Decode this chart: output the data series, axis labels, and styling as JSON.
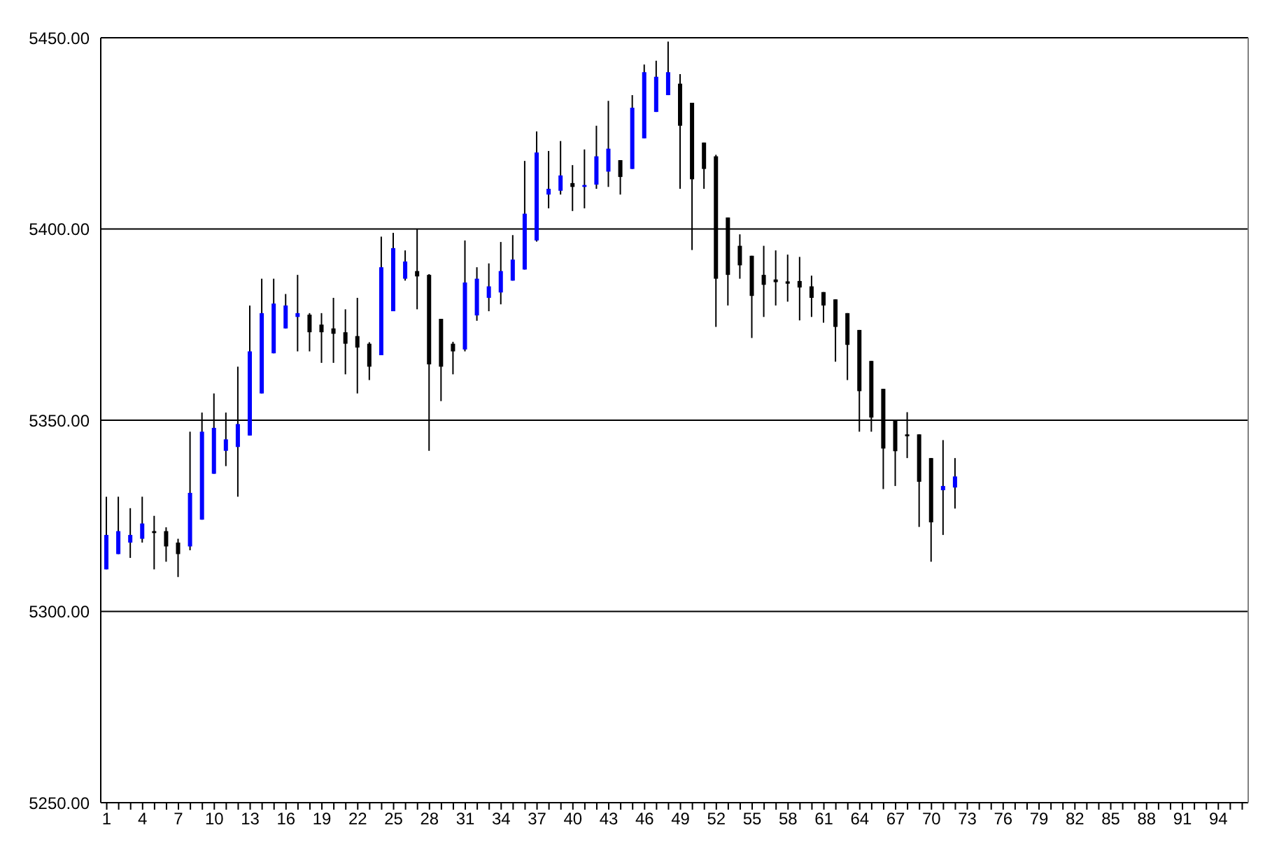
{
  "chart_data": {
    "type": "candlestick",
    "x": [
      1,
      2,
      3,
      4,
      5,
      6,
      7,
      8,
      9,
      10,
      11,
      12,
      13,
      14,
      15,
      16,
      17,
      18,
      19,
      20,
      21,
      22,
      23,
      24,
      25,
      26,
      27,
      28,
      29,
      30,
      31,
      32,
      33,
      34,
      35,
      36,
      37,
      38,
      39,
      40,
      41,
      42,
      43,
      44,
      45,
      46,
      47,
      48,
      49,
      50,
      51,
      52,
      53,
      54,
      55,
      56,
      57,
      58,
      59,
      60,
      61,
      62,
      63,
      64,
      65,
      66,
      67,
      68,
      69,
      70,
      71,
      72
    ],
    "ohlc": [
      [
        5311,
        5330,
        5311,
        5320
      ],
      [
        5315,
        5330,
        5315,
        5321
      ],
      [
        5318,
        5327,
        5314,
        5320
      ],
      [
        5319,
        5330,
        5318,
        5323
      ],
      [
        5321,
        5325,
        5311,
        5320.5
      ],
      [
        5321,
        5322,
        5313,
        5317
      ],
      [
        5318,
        5319,
        5309,
        5315
      ],
      [
        5317,
        5347,
        5316,
        5331
      ],
      [
        5324,
        5352,
        5324,
        5347
      ],
      [
        5336,
        5357,
        5336,
        5348
      ],
      [
        5342,
        5352,
        5338,
        5345
      ],
      [
        5343,
        5364,
        5330,
        5349
      ],
      [
        5346,
        5380,
        5346,
        5368
      ],
      [
        5357,
        5387,
        5357,
        5378
      ],
      [
        5367.5,
        5387,
        5367.5,
        5380.5
      ],
      [
        5374,
        5383,
        5374,
        5380
      ],
      [
        5377,
        5388,
        5368,
        5378
      ],
      [
        5377.6,
        5378,
        5368,
        5373
      ],
      [
        5375,
        5378,
        5365,
        5373
      ],
      [
        5374,
        5382,
        5365,
        5372.6
      ],
      [
        5373,
        5379,
        5362,
        5370
      ],
      [
        5372,
        5382,
        5357,
        5369
      ],
      [
        5370,
        5370.4,
        5360.5,
        5364
      ],
      [
        5367,
        5398,
        5367,
        5390
      ],
      [
        5378.5,
        5399,
        5378.5,
        5395
      ],
      [
        5387,
        5394.4,
        5386.5,
        5391.5
      ],
      [
        5389,
        5400,
        5379,
        5387.6
      ],
      [
        5388,
        5388.2,
        5342,
        5364.6
      ],
      [
        5376.5,
        5376.5,
        5355,
        5364
      ],
      [
        5370,
        5370.5,
        5362,
        5368
      ],
      [
        5368.5,
        5397,
        5368,
        5386
      ],
      [
        5377.4,
        5390,
        5376,
        5387
      ],
      [
        5382,
        5391,
        5378.5,
        5385
      ],
      [
        5383.4,
        5396.6,
        5380.3,
        5389
      ],
      [
        5386.5,
        5398.4,
        5386.5,
        5392
      ],
      [
        5389.4,
        5417.8,
        5389.4,
        5404
      ],
      [
        5397,
        5425.5,
        5396.7,
        5420
      ],
      [
        5409,
        5420.4,
        5405.4,
        5410.5
      ],
      [
        5410,
        5423,
        5409,
        5414
      ],
      [
        5412,
        5416.7,
        5404.7,
        5411
      ],
      [
        5411,
        5420.8,
        5405.4,
        5411.5
      ],
      [
        5411.6,
        5427,
        5410.5,
        5419
      ],
      [
        5415,
        5433.5,
        5411,
        5421
      ],
      [
        5418,
        5418,
        5409,
        5413.6
      ],
      [
        5415.7,
        5435,
        5415.7,
        5431.7
      ],
      [
        5423.7,
        5443,
        5423.7,
        5441
      ],
      [
        5430.6,
        5444,
        5430.6,
        5439.8
      ],
      [
        5435,
        5449,
        5435,
        5441
      ],
      [
        5438,
        5440.5,
        5410.5,
        5427
      ],
      [
        5433,
        5433,
        5394.5,
        5413
      ],
      [
        5422.6,
        5422.6,
        5410.5,
        5415.7
      ],
      [
        5419,
        5419.4,
        5374.4,
        5387
      ],
      [
        5403,
        5403,
        5380,
        5388
      ],
      [
        5395.6,
        5398.6,
        5387,
        5390.5
      ],
      [
        5393,
        5393,
        5371.5,
        5382.5
      ],
      [
        5388,
        5395.6,
        5377,
        5385.4
      ],
      [
        5386.8,
        5394.4,
        5380,
        5386.1
      ],
      [
        5386.3,
        5393.3,
        5381,
        5385.7
      ],
      [
        5386.4,
        5392.7,
        5376.1,
        5384.7
      ],
      [
        5385,
        5387.8,
        5377,
        5382
      ],
      [
        5383.5,
        5383.5,
        5375.5,
        5380
      ],
      [
        5381.6,
        5381.6,
        5365.3,
        5374.4
      ],
      [
        5378,
        5378,
        5360.5,
        5369.7
      ],
      [
        5373.6,
        5373.6,
        5347,
        5357.6
      ],
      [
        5365.5,
        5365.5,
        5347,
        5350.7
      ],
      [
        5358.2,
        5358.2,
        5332,
        5342.6
      ],
      [
        5350,
        5350,
        5332.8,
        5341.9
      ],
      [
        5346.3,
        5352.1,
        5340.1,
        5345.8
      ],
      [
        5346.3,
        5346.3,
        5322.1,
        5333.9
      ],
      [
        5340.1,
        5340.1,
        5313,
        5323.3
      ],
      [
        5331.7,
        5344.8,
        5320,
        5332.8
      ],
      [
        5332.4,
        5340.1,
        5326.9,
        5335.3
      ]
    ],
    "colors": [
      "#0000ff",
      "#0000ff",
      "#0000ff",
      "#0000ff",
      "#000000",
      "#000000",
      "#000000",
      "#0000ff",
      "#0000ff",
      "#0000ff",
      "#0000ff",
      "#0000ff",
      "#0000ff",
      "#0000ff",
      "#0000ff",
      "#0000ff",
      "#0000ff",
      "#000000",
      "#000000",
      "#000000",
      "#000000",
      "#000000",
      "#000000",
      "#0000ff",
      "#0000ff",
      "#0000ff",
      "#000000",
      "#000000",
      "#000000",
      "#000000",
      "#0000ff",
      "#0000ff",
      "#0000ff",
      "#0000ff",
      "#0000ff",
      "#0000ff",
      "#0000ff",
      "#0000ff",
      "#0000ff",
      "#000000",
      "#0000ff",
      "#0000ff",
      "#0000ff",
      "#000000",
      "#0000ff",
      "#0000ff",
      "#0000ff",
      "#0000ff",
      "#000000",
      "#000000",
      "#000000",
      "#000000",
      "#000000",
      "#000000",
      "#000000",
      "#000000",
      "#000000",
      "#000000",
      "#000000",
      "#000000",
      "#000000",
      "#000000",
      "#000000",
      "#000000",
      "#000000",
      "#000000",
      "#000000",
      "#000000",
      "#000000",
      "#000000",
      "#0000ff",
      "#0000ff"
    ],
    "xlim": [
      0.5,
      96.5
    ],
    "xticks": [
      1,
      {
        "value": 2,
        "label": null
      },
      {
        "value": 3,
        "label": null
      },
      4,
      {
        "value": 5,
        "label": null
      },
      {
        "value": 6,
        "label": null
      },
      7,
      {
        "value": 8,
        "label": null
      },
      {
        "value": 9,
        "label": null
      },
      10,
      {
        "value": 11,
        "label": null
      },
      {
        "value": 12,
        "label": null
      },
      13,
      {
        "value": 14,
        "label": null
      },
      {
        "value": 15,
        "label": null
      },
      16,
      {
        "value": 17,
        "label": null
      },
      {
        "value": 18,
        "label": null
      },
      19,
      {
        "value": 20,
        "label": null
      },
      {
        "value": 21,
        "label": null
      },
      22,
      {
        "value": 23,
        "label": null
      },
      {
        "value": 24,
        "label": null
      },
      25,
      {
        "value": 26,
        "label": null
      },
      {
        "value": 27,
        "label": null
      },
      28,
      {
        "value": 29,
        "label": null
      },
      {
        "value": 30,
        "label": null
      },
      31,
      {
        "value": 32,
        "label": null
      },
      {
        "value": 33,
        "label": null
      },
      34,
      {
        "value": 35,
        "label": null
      },
      {
        "value": 36,
        "label": null
      },
      37,
      {
        "value": 38,
        "label": null
      },
      {
        "value": 39,
        "label": null
      },
      40,
      {
        "value": 41,
        "label": null
      },
      {
        "value": 42,
        "label": null
      },
      43,
      {
        "value": 44,
        "label": null
      },
      {
        "value": 45,
        "label": null
      },
      46,
      {
        "value": 47,
        "label": null
      },
      {
        "value": 48,
        "label": null
      },
      49,
      {
        "value": 50,
        "label": null
      },
      {
        "value": 51,
        "label": null
      },
      52,
      {
        "value": 53,
        "label": null
      },
      {
        "value": 54,
        "label": null
      },
      55,
      {
        "value": 56,
        "label": null
      },
      {
        "value": 57,
        "label": null
      },
      58,
      {
        "value": 59,
        "label": null
      },
      {
        "value": 60,
        "label": null
      },
      61,
      {
        "value": 62,
        "label": null
      },
      {
        "value": 63,
        "label": null
      },
      64,
      {
        "value": 65,
        "label": null
      },
      {
        "value": 66,
        "label": null
      },
      67,
      {
        "value": 68,
        "label": null
      },
      {
        "value": 69,
        "label": null
      },
      70,
      {
        "value": 71,
        "label": null
      },
      {
        "value": 72,
        "label": null
      },
      73,
      {
        "value": 74,
        "label": null
      },
      {
        "value": 75,
        "label": null
      },
      76,
      {
        "value": 77,
        "label": null
      },
      {
        "value": 78,
        "label": null
      },
      79,
      {
        "value": 80,
        "label": null
      },
      {
        "value": 81,
        "label": null
      },
      82,
      {
        "value": 83,
        "label": null
      },
      {
        "value": 84,
        "label": null
      },
      85,
      {
        "value": 86,
        "label": null
      },
      {
        "value": 87,
        "label": null
      },
      88,
      {
        "value": 89,
        "label": null
      },
      {
        "value": 90,
        "label": null
      },
      91,
      {
        "value": 92,
        "label": null
      },
      {
        "value": 93,
        "label": null
      },
      94,
      {
        "value": 95,
        "label": null
      },
      {
        "value": 96,
        "label": null
      }
    ],
    "ylim": [
      5250,
      5450
    ],
    "yticks": [
      {
        "value": 5250,
        "label": "5250.00"
      },
      {
        "value": 5300,
        "label": "5300.00"
      },
      {
        "value": 5350,
        "label": "5350.00"
      },
      {
        "value": 5400,
        "label": "5400.00"
      },
      {
        "value": 5450,
        "label": "5450.00"
      }
    ],
    "grid": "y"
  }
}
